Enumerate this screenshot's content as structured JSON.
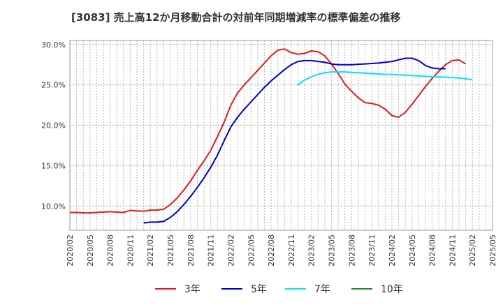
{
  "title": "[3083]  売上高12か月移動合計の対前年同期増減率の標準偏差の推移",
  "chart_data": {
    "type": "line",
    "title": "[3083]  売上高12か月移動合計の対前年同期増減率の標準偏差の推移",
    "xlabel": "",
    "ylabel": "",
    "x_ticks": [
      "2020/02",
      "2020/05",
      "2020/08",
      "2020/11",
      "2021/02",
      "2021/05",
      "2021/08",
      "2021/11",
      "2022/02",
      "2022/05",
      "2022/08",
      "2022/11",
      "2023/02",
      "2023/05",
      "2023/08",
      "2023/11",
      "2024/02",
      "2024/05",
      "2024/08",
      "2024/11",
      "2025/02",
      "2025/05"
    ],
    "y_ticks": [
      10,
      15,
      20,
      25,
      30
    ],
    "y_tick_labels": [
      "10.0%",
      "15.0%",
      "20.0%",
      "25.0%",
      "30.0%"
    ],
    "ylim": [
      7.0,
      30.5
    ],
    "xlim": [
      "2020/02",
      "2025/05"
    ],
    "grid": true,
    "legend_position": "bottom",
    "series": [
      {
        "name": "3年",
        "color": "#e31a1c",
        "start": "2020/02",
        "values": [
          9.2,
          9.2,
          9.15,
          9.15,
          9.2,
          9.25,
          9.3,
          9.25,
          9.2,
          9.45,
          9.4,
          9.35,
          9.5,
          9.5,
          9.6,
          10.2,
          11.0,
          12.0,
          13.1,
          14.4,
          15.6,
          16.9,
          18.6,
          20.4,
          22.5,
          24.0,
          25.0,
          25.9,
          26.8,
          27.7,
          28.6,
          29.3,
          29.45,
          29.0,
          28.8,
          28.9,
          29.2,
          29.1,
          28.6,
          27.6,
          26.4,
          25.1,
          24.2,
          23.4,
          22.8,
          22.7,
          22.5,
          22.0,
          21.2,
          21.0,
          21.6,
          22.6,
          23.7,
          24.8,
          25.8,
          26.7,
          27.5,
          28.0,
          28.1,
          27.6
        ]
      },
      {
        "name": "5年",
        "color": "#0000cc",
        "start": "2021/01",
        "values": [
          7.9,
          8.0,
          8.0,
          8.1,
          8.6,
          9.3,
          10.2,
          11.2,
          12.3,
          13.5,
          14.8,
          16.3,
          18.1,
          19.8,
          21.0,
          22.0,
          22.9,
          23.8,
          24.7,
          25.5,
          26.2,
          26.9,
          27.5,
          27.9,
          28.0,
          28.0,
          27.9,
          27.8,
          27.6,
          27.5,
          27.5,
          27.5,
          27.55,
          27.6,
          27.65,
          27.7,
          27.8,
          27.9,
          28.1,
          28.3,
          28.3,
          28.0,
          27.4,
          27.1,
          27.0,
          27.0
        ]
      },
      {
        "name": "7年",
        "color": "#00e5ee",
        "start": "2022/12",
        "values": [
          25.0,
          25.6,
          26.0,
          26.3,
          26.5,
          26.6,
          26.6,
          26.6,
          26.55,
          26.5,
          26.45,
          26.4,
          26.35,
          26.3,
          26.3,
          26.25,
          26.2,
          26.15,
          26.1,
          26.05,
          26.0,
          26.0,
          25.95,
          25.9,
          25.85,
          25.75,
          25.65
        ]
      },
      {
        "name": "10年",
        "color": "#228b22",
        "start": null,
        "values": []
      }
    ]
  }
}
